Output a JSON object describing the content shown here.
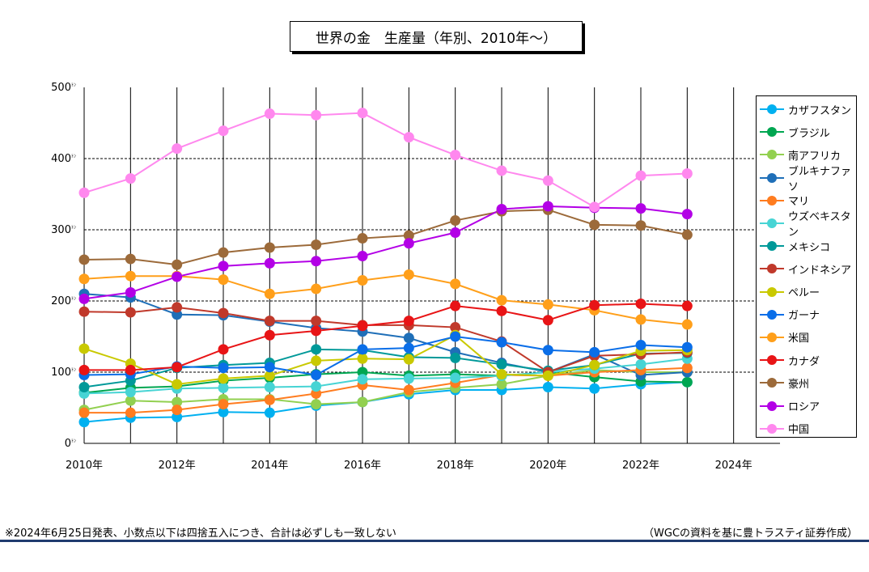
{
  "chart_data": {
    "type": "line",
    "title": "世界の金　生産量（年別、2010年～）",
    "unit_suffix": "ﾄﾝ",
    "ylim": [
      0,
      500
    ],
    "y_ticks": [
      0,
      100,
      200,
      300,
      400,
      500
    ],
    "xlim": [
      2010,
      2025
    ],
    "x_ticks": [
      2010,
      2012,
      2014,
      2016,
      2018,
      2020,
      2022,
      2024
    ],
    "x_tick_suffix": "年",
    "grid": true,
    "legend_position": "right",
    "x": [
      2010,
      2011,
      2012,
      2013,
      2014,
      2015,
      2016,
      2017,
      2018,
      2019,
      2020,
      2021,
      2022,
      2023
    ],
    "series": [
      {
        "name": "カザフスタン",
        "color": "#00b0f0",
        "values": [
          30,
          36,
          37,
          44,
          43,
          53,
          58,
          69,
          75,
          75,
          79,
          77,
          83,
          86
        ]
      },
      {
        "name": "ブラジル",
        "color": "#00a651",
        "values": [
          71,
          78,
          80,
          88,
          92,
          97,
          100,
          95,
          97,
          95,
          100,
          93,
          87,
          86
        ]
      },
      {
        "name": "南アフリカ",
        "color": "#92d050",
        "values": [
          47,
          60,
          58,
          62,
          62,
          55,
          58,
          72,
          78,
          83,
          95,
          103,
          100,
          100
        ]
      },
      {
        "name": "ブルキナファソ",
        "color": "#1f6fb8",
        "values": [
          210,
          205,
          181,
          180,
          171,
          162,
          157,
          148,
          128,
          113,
          100,
          125,
          96,
          100
        ]
      },
      {
        "name": "マリ",
        "color": "#ff7c1f",
        "values": [
          43,
          43,
          47,
          55,
          61,
          70,
          82,
          75,
          85,
          96,
          95,
          100,
          103,
          106
        ]
      },
      {
        "name": "ウズベキスタン",
        "color": "#47d4d4",
        "values": [
          70,
          72,
          77,
          78,
          79,
          80,
          90,
          91,
          92,
          95,
          100,
          105,
          111,
          119
        ]
      },
      {
        "name": "メキシコ",
        "color": "#009999",
        "values": [
          79,
          88,
          106,
          110,
          113,
          132,
          131,
          121,
          120,
          111,
          102,
          110,
          126,
          127
        ]
      },
      {
        "name": "インドネシア",
        "color": "#c0392b",
        "values": [
          185,
          184,
          191,
          183,
          172,
          172,
          166,
          166,
          163,
          143,
          100,
          123,
          125,
          128
        ]
      },
      {
        "name": "ペルー",
        "color": "#c9c900",
        "values": [
          133,
          112,
          83,
          91,
          95,
          116,
          119,
          118,
          152,
          97,
          95,
          110,
          130,
          131
        ]
      },
      {
        "name": "ガーナ",
        "color": "#0a6ee8",
        "values": [
          96,
          97,
          108,
          106,
          107,
          96,
          132,
          134,
          150,
          142,
          131,
          128,
          138,
          135
        ]
      },
      {
        "name": "米国",
        "color": "#ff9f1a",
        "values": [
          231,
          235,
          235,
          230,
          210,
          217,
          229,
          237,
          224,
          201,
          195,
          187,
          174,
          167
        ]
      },
      {
        "name": "カナダ",
        "color": "#e81416",
        "values": [
          103,
          103,
          107,
          132,
          152,
          158,
          165,
          172,
          193,
          186,
          173,
          194,
          196,
          193
        ]
      },
      {
        "name": "豪州",
        "color": "#9c6a3a",
        "values": [
          258,
          259,
          251,
          268,
          275,
          279,
          288,
          292,
          313,
          326,
          328,
          307,
          306,
          293
        ]
      },
      {
        "name": "ロシア",
        "color": "#b300e6",
        "values": [
          203,
          212,
          234,
          249,
          253,
          256,
          263,
          281,
          296,
          329,
          333,
          331,
          330,
          322
        ]
      },
      {
        "name": "中国",
        "color": "#ff88ee",
        "values": [
          352,
          372,
          414,
          439,
          463,
          461,
          464,
          430,
          405,
          383,
          369,
          332,
          376,
          379
        ]
      }
    ]
  },
  "footer": {
    "note": "※2024年6月25日発表、小数点以下は四捨五入につき、合計は必ずしも一致しない",
    "source": "（WGCの資料を基に豊トラスティ証券作成）"
  }
}
